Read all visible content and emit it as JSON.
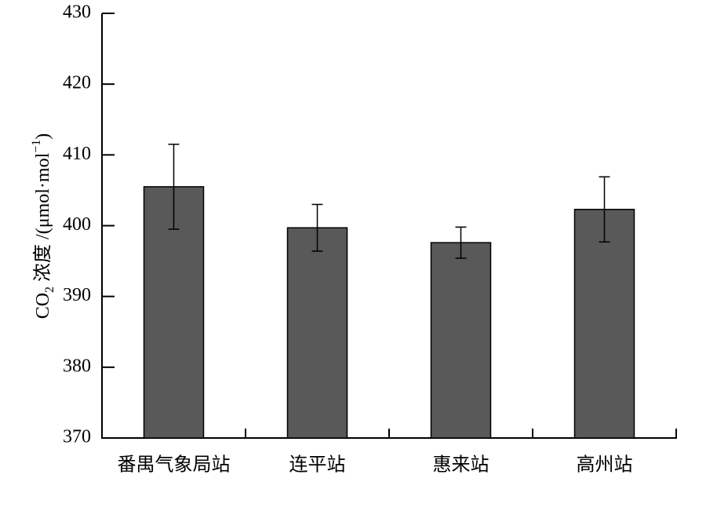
{
  "chart_data": {
    "type": "bar",
    "y_label": [
      "CO",
      "2",
      " 浓度 /(μmol·mol",
      "−1",
      ")"
    ],
    "categories": [
      "番禺气象局站",
      "连平站",
      "惠来站",
      "高州站"
    ],
    "values": [
      405.5,
      399.7,
      397.6,
      402.3
    ],
    "errors": [
      6.0,
      3.3,
      2.2,
      4.6
    ],
    "color": "#595959",
    "ylim": [
      370,
      430
    ],
    "yticks": [
      370,
      380,
      390,
      400,
      410,
      420,
      430
    ]
  }
}
